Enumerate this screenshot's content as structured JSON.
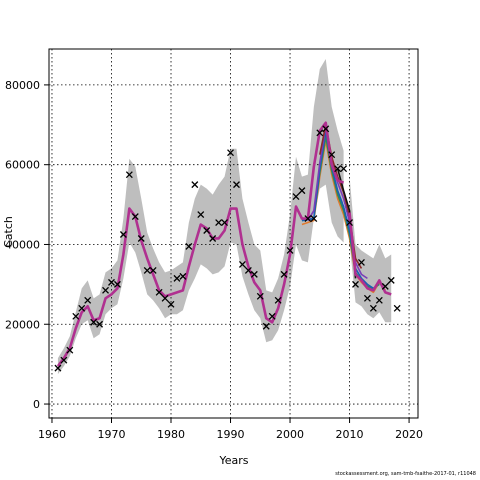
{
  "chart_data": {
    "type": "line",
    "xlabel": "Years",
    "ylabel": "Catch",
    "xlim": [
      1959.5,
      2021.5
    ],
    "ylim": [
      -3500,
      89000
    ],
    "xticks": [
      1960,
      1970,
      1980,
      1990,
      2000,
      2010,
      2020
    ],
    "yticks": [
      0,
      20000,
      40000,
      60000,
      80000
    ],
    "grid": true,
    "colors": {
      "band": "#bebebe",
      "main_line": "#b03090",
      "observed_marker": "#000000",
      "grid": "#000000",
      "retro": [
        "#e07a30",
        "#2e8b57",
        "#1a5fb4",
        "#7a3db8",
        "#8b2a2a",
        "#111111"
      ]
    },
    "series": [
      {
        "kind": "estimate",
        "x": [
          1961,
          1962,
          1963,
          1964,
          1965,
          1966,
          1967,
          1968,
          1969,
          1970,
          1971,
          1972,
          1973,
          1974,
          1975,
          1976,
          1977,
          1978,
          1979,
          1980,
          1981,
          1982,
          1983,
          1984,
          1985,
          1986,
          1987,
          1988,
          1989,
          1990,
          1991,
          1992,
          1993,
          1994,
          1995,
          1996,
          1997,
          1998,
          1999,
          2000,
          2001,
          2002,
          2003,
          2004,
          2005,
          2006,
          2007,
          2008,
          2009
        ],
        "values": [
          9500,
          11500,
          14000,
          19000,
          23000,
          24500,
          21000,
          21500,
          26500,
          27500,
          29000,
          37500,
          49000,
          47000,
          41000,
          36500,
          32500,
          28500,
          27000,
          27500,
          28000,
          28500,
          34500,
          40000,
          45000,
          44000,
          41500,
          41500,
          43500,
          49000,
          49000,
          40000,
          34500,
          30500,
          28500,
          21500,
          20500,
          24000,
          30000,
          37500,
          49500,
          46500,
          46500,
          59500,
          68500,
          70500,
          60000,
          56000,
          55500
        ],
        "lower": [
          7500,
          9500,
          12000,
          16500,
          20000,
          21000,
          16500,
          17500,
          22500,
          24000,
          25000,
          31500,
          40500,
          38000,
          33000,
          27500,
          26000,
          24000,
          21500,
          22500,
          22500,
          23500,
          28500,
          31500,
          35000,
          34000,
          32500,
          33000,
          34500,
          40500,
          40000,
          32000,
          27500,
          23500,
          21500,
          15500,
          16000,
          18500,
          23500,
          29500,
          40000,
          36000,
          35500,
          46500,
          54000,
          55000,
          45500,
          42000,
          40500
        ],
        "upper": [
          11500,
          14000,
          17000,
          23000,
          29000,
          31000,
          26500,
          27500,
          33000,
          34000,
          36000,
          46500,
          61500,
          59500,
          51500,
          43000,
          39000,
          35500,
          33000,
          33500,
          34500,
          35500,
          45500,
          51500,
          55000,
          54000,
          52500,
          55000,
          57000,
          64000,
          64000,
          51500,
          45500,
          40000,
          38500,
          28500,
          28000,
          31500,
          37500,
          47500,
          62000,
          57000,
          57500,
          74500,
          84000,
          86500,
          74500,
          68500,
          63500
        ]
      },
      {
        "kind": "retro",
        "x": [
          2010,
          2011,
          2012,
          2013,
          2014,
          2015,
          2016,
          2017
        ],
        "values": [
          48000,
          32500,
          31000,
          29000,
          28500,
          31000,
          28000,
          27500
        ],
        "lower": [
          40500,
          25500,
          24500,
          22500,
          21500,
          23000,
          20500,
          20500
        ],
        "upper": [
          57000,
          40000,
          38500,
          37500,
          36500,
          40000,
          36500,
          37500
        ]
      }
    ],
    "retro_peels": [
      {
        "x": [
          2002,
          2004,
          2005,
          2006,
          2007,
          2008,
          2009,
          2010,
          2011,
          2012,
          2013,
          2014,
          2015,
          2016
        ],
        "values": [
          45000,
          46000,
          57000,
          66000,
          57500,
          51500,
          47500,
          41500,
          32500,
          30500,
          29000,
          28000,
          30500,
          28500
        ]
      },
      {
        "x": [
          2002,
          2004,
          2005,
          2006,
          2007,
          2008,
          2009,
          2010,
          2011,
          2012,
          2013,
          2014,
          2015
        ],
        "values": [
          46000,
          46500,
          58000,
          67000,
          58500,
          52500,
          48500,
          42500,
          33000,
          31000,
          29500,
          29000,
          30000
        ]
      },
      {
        "x": [
          2002,
          2004,
          2005,
          2006,
          2007,
          2008,
          2009,
          2010,
          2011,
          2012,
          2013,
          2014
        ],
        "values": [
          46000,
          46500,
          59000,
          68500,
          59500,
          53500,
          49500,
          43500,
          34000,
          31500,
          30000,
          29000
        ]
      },
      {
        "x": [
          2003,
          2004,
          2005,
          2006,
          2007,
          2008,
          2009,
          2010,
          2011,
          2012,
          2013
        ],
        "values": [
          46000,
          48500,
          60500,
          69500,
          61000,
          55500,
          51500,
          45500,
          35500,
          32500,
          31500
        ]
      },
      {
        "x": [
          2005,
          2006,
          2007,
          2008,
          2009,
          2010,
          2011,
          2012
        ],
        "values": [
          62500,
          70000,
          62000,
          57000,
          53000,
          47000,
          36500,
          34000
        ]
      },
      {
        "x": [
          2008,
          2009,
          2010,
          2011
        ],
        "values": [
          59000,
          53500,
          48500,
          31500
        ]
      }
    ],
    "observed": {
      "x": [
        1961,
        1962,
        1963,
        1964,
        1965,
        1966,
        1967,
        1968,
        1969,
        1970,
        1971,
        1972,
        1973,
        1974,
        1975,
        1976,
        1977,
        1978,
        1979,
        1980,
        1981,
        1982,
        1983,
        1984,
        1985,
        1986,
        1987,
        1988,
        1989,
        1990,
        1991,
        1992,
        1993,
        1994,
        1995,
        1996,
        1997,
        1998,
        1999,
        2000,
        2001,
        2002,
        2003,
        2004,
        2005,
        2006,
        2007,
        2008,
        2009,
        2010,
        2011,
        2012,
        2013,
        2014,
        2015,
        2016,
        2017,
        2018
      ],
      "y": [
        9000,
        11000,
        13500,
        22000,
        24000,
        26000,
        20500,
        20000,
        28500,
        30500,
        30000,
        42500,
        57500,
        47000,
        41500,
        33500,
        33500,
        28000,
        26500,
        25000,
        31500,
        32000,
        39500,
        55000,
        47500,
        43500,
        41500,
        45500,
        45500,
        63000,
        55000,
        35000,
        33500,
        32500,
        27000,
        19500,
        22000,
        26000,
        32500,
        38500,
        52000,
        53500,
        46500,
        46500,
        68000,
        69000,
        62500,
        59000,
        59000,
        45500,
        30000,
        35500,
        26500,
        24000,
        26000,
        29500,
        31000,
        24000
      ]
    }
  },
  "footnote": "stockassessment.org, sam-tmb-fsaithe-2017-01, r11048"
}
